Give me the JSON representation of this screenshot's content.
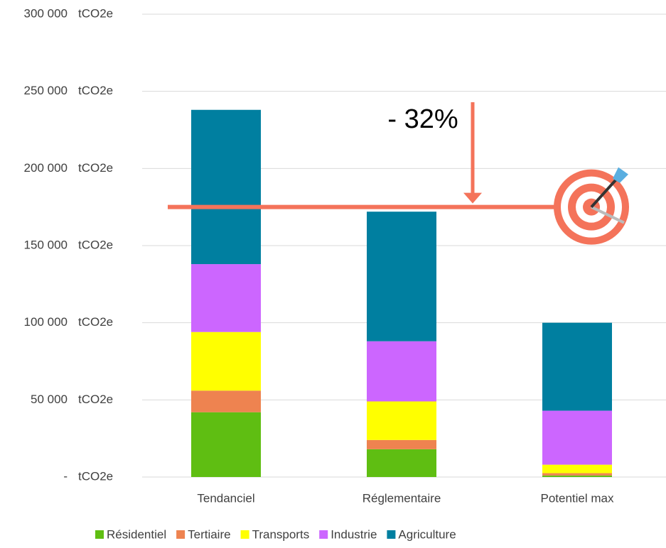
{
  "chart_data": {
    "type": "stacked_bar",
    "categories": [
      "Tendanciel",
      "Réglementaire",
      "Potentiel max"
    ],
    "series": [
      {
        "name": "Résidentiel",
        "color": "#5fbe12",
        "values": [
          42000,
          18000,
          1000
        ]
      },
      {
        "name": "Tertiaire",
        "color": "#ee8350",
        "values": [
          14000,
          6000,
          1500
        ]
      },
      {
        "name": "Transports",
        "color": "#ffff00",
        "values": [
          38000,
          25000,
          5500
        ]
      },
      {
        "name": "Industrie",
        "color": "#cc66ff",
        "values": [
          44000,
          39000,
          35000
        ]
      },
      {
        "name": "Agriculture",
        "color": "#007fa0",
        "values": [
          100000,
          84000,
          57000
        ]
      }
    ],
    "ylim": [
      0,
      300000
    ],
    "yticks": [
      {
        "value": 0,
        "label": "-"
      },
      {
        "value": 50000,
        "label": "50 000"
      },
      {
        "value": 100000,
        "label": "100 000"
      },
      {
        "value": 150000,
        "label": "150 000"
      },
      {
        "value": 200000,
        "label": "200 000"
      },
      {
        "value": 250000,
        "label": "250 000"
      },
      {
        "value": 300000,
        "label": "300 000"
      }
    ],
    "ytick_unit": "tCO2e",
    "grid": true,
    "legend": "bottom",
    "target": 175000,
    "target_color": "#f4735a",
    "annotation": "- 32%"
  }
}
